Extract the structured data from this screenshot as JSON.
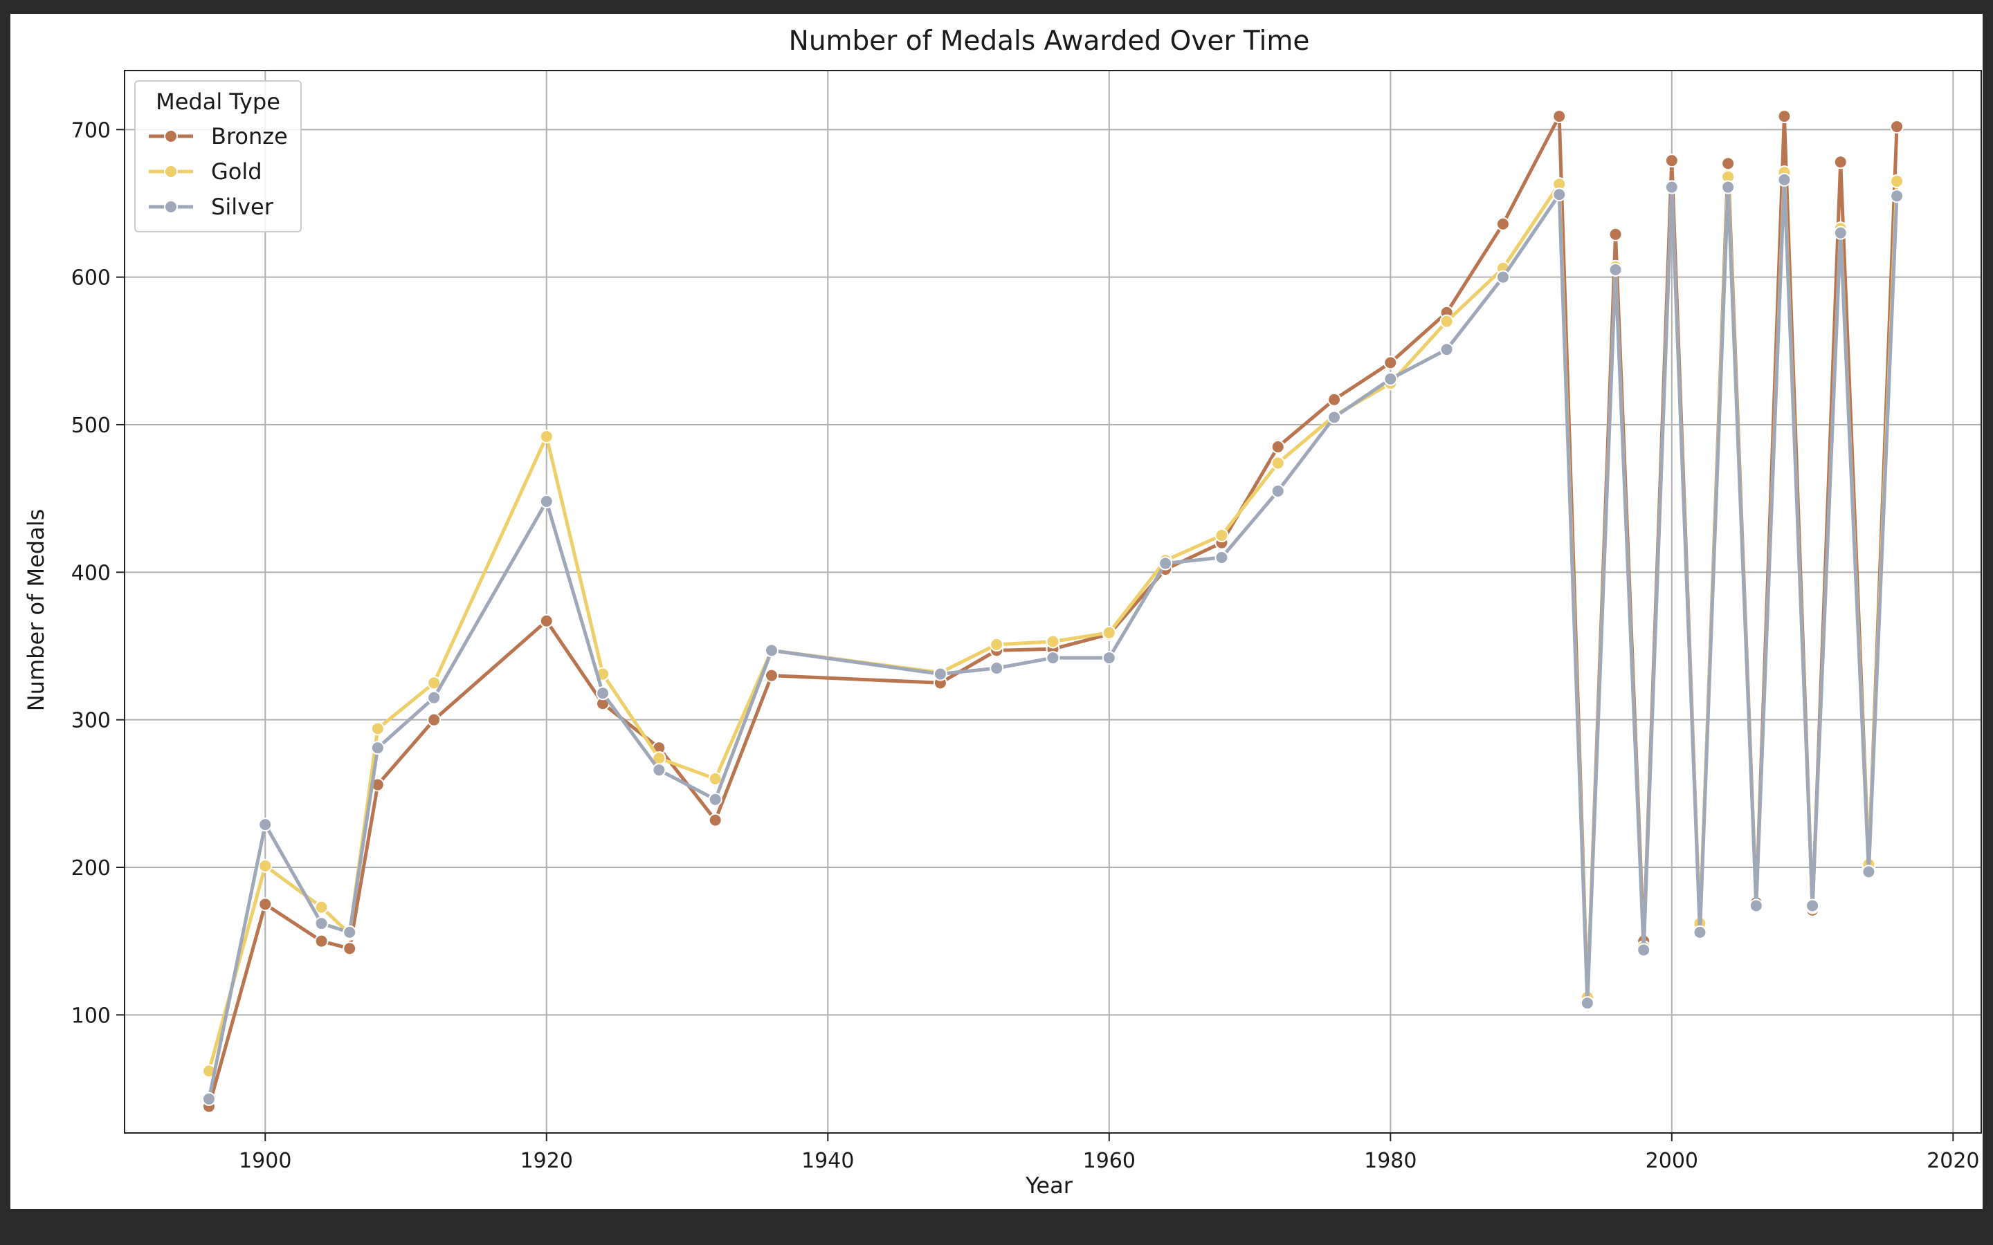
{
  "chart_data": {
    "type": "line",
    "title": "Number of Medals Awarded Over Time",
    "xlabel": "Year",
    "ylabel": "Number of Medals",
    "xlim": [
      1890,
      2022
    ],
    "ylim": [
      20,
      740
    ],
    "xticks": [
      1900,
      1920,
      1940,
      1960,
      1980,
      2000,
      2020
    ],
    "yticks": [
      100,
      200,
      300,
      400,
      500,
      600,
      700
    ],
    "grid": true,
    "legend": {
      "title": "Medal Type",
      "position": "top-left"
    },
    "x": [
      1896,
      1900,
      1904,
      1906,
      1908,
      1912,
      1920,
      1924,
      1928,
      1932,
      1936,
      1948,
      1952,
      1956,
      1960,
      1964,
      1968,
      1972,
      1976,
      1980,
      1984,
      1988,
      1992,
      1994,
      1996,
      1998,
      2000,
      2002,
      2004,
      2006,
      2008,
      2010,
      2012,
      2014,
      2016
    ],
    "series": [
      {
        "name": "Bronze",
        "color": "#b87550",
        "values": [
          38,
          175,
          150,
          145,
          256,
          300,
          367,
          311,
          281,
          232,
          330,
          325,
          347,
          348,
          358,
          402,
          420,
          485,
          517,
          542,
          576,
          636,
          709,
          111,
          629,
          150,
          679,
          159,
          677,
          176,
          709,
          171,
          678,
          201,
          702
        ]
      },
      {
        "name": "Gold",
        "color": "#efcf6a",
        "values": [
          62,
          201,
          173,
          155,
          294,
          325,
          492,
          331,
          274,
          260,
          347,
          332,
          351,
          353,
          359,
          408,
          425,
          474,
          506,
          528,
          570,
          606,
          663,
          112,
          607,
          146,
          661,
          162,
          668,
          174,
          671,
          173,
          633,
          202,
          665
        ]
      },
      {
        "name": "Silver",
        "color": "#9fa8b8",
        "values": [
          43,
          229,
          162,
          156,
          281,
          315,
          448,
          318,
          266,
          246,
          347,
          331,
          335,
          342,
          342,
          406,
          410,
          455,
          505,
          531,
          551,
          600,
          656,
          108,
          605,
          144,
          661,
          156,
          661,
          174,
          666,
          174,
          630,
          197,
          655
        ]
      }
    ]
  }
}
